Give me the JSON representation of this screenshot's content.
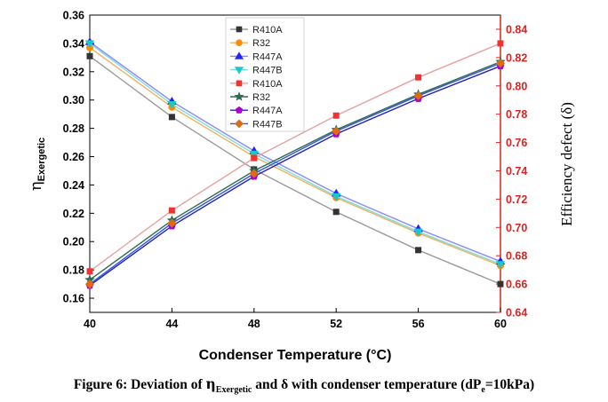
{
  "chart_data": {
    "type": "line",
    "x": [
      40,
      44,
      48,
      52,
      56,
      60
    ],
    "xlabel": "Condenser Temperature (°C)",
    "xlim": [
      40,
      60
    ],
    "xticks": [
      "40",
      "44",
      "48",
      "52",
      "56",
      "60"
    ],
    "ylabel_left_main": "η",
    "ylabel_left_sub": "Exergetic",
    "ylim_left": [
      0.15,
      0.36
    ],
    "yticks_left": [
      "0.16",
      "0.18",
      "0.20",
      "0.22",
      "0.24",
      "0.26",
      "0.28",
      "0.30",
      "0.32",
      "0.34",
      "0.36"
    ],
    "ylabel_right": "Efficiency defect (δ)",
    "ylim_right": [
      0.64,
      0.85
    ],
    "yticks_right": [
      "0.64",
      "0.66",
      "0.68",
      "0.70",
      "0.72",
      "0.74",
      "0.76",
      "0.78",
      "0.80",
      "0.82",
      "0.84"
    ],
    "grid": false,
    "legend_position": "top-center",
    "series": [
      {
        "name": "R410A",
        "axis": "left",
        "marker": "square",
        "color": "#333333",
        "line_color": "#9a9a9a",
        "values": [
          0.331,
          0.288,
          0.251,
          0.221,
          0.194,
          0.17
        ]
      },
      {
        "name": "R32",
        "axis": "left",
        "marker": "circle",
        "color": "#ff8a00",
        "line_color": "#f0b060",
        "values": [
          0.337,
          0.295,
          0.26,
          0.231,
          0.206,
          0.183
        ]
      },
      {
        "name": "R447A",
        "axis": "left",
        "marker": "triangle-up",
        "color": "#2222ff",
        "line_color": "#8888ff",
        "values": [
          0.341,
          0.299,
          0.264,
          0.234,
          0.209,
          0.186
        ]
      },
      {
        "name": "R447B",
        "axis": "left",
        "marker": "triangle-down",
        "color": "#17c9c9",
        "line_color": "#80dddd",
        "values": [
          0.34,
          0.297,
          0.262,
          0.232,
          0.207,
          0.184
        ]
      },
      {
        "name": "R410A",
        "axis": "right",
        "marker": "square",
        "color": "#ee3333",
        "line_color": "#e8a0a0",
        "values": [
          0.669,
          0.712,
          0.749,
          0.779,
          0.806,
          0.83
        ]
      },
      {
        "name": "R32",
        "axis": "right",
        "marker": "star",
        "color": "#2e6b52",
        "line_color": "#2e6b52",
        "values": [
          0.663,
          0.705,
          0.74,
          0.769,
          0.794,
          0.817
        ]
      },
      {
        "name": "R447A",
        "axis": "right",
        "marker": "pentagon",
        "color": "#aa00cc",
        "line_color": "#2222bb",
        "values": [
          0.659,
          0.701,
          0.736,
          0.766,
          0.791,
          0.814
        ]
      },
      {
        "name": "R447B",
        "axis": "right",
        "marker": "diamond",
        "color": "#e06a10",
        "line_color": "#3355dd",
        "values": [
          0.66,
          0.703,
          0.738,
          0.768,
          0.793,
          0.816
        ]
      }
    ]
  },
  "caption": {
    "prefix": "Figure 6: Deviation of ",
    "eta": "η",
    "eta_sub": "Exergetic",
    "middle": " and δ with condenser temperature (dP",
    "p_sub": "e",
    "suffix": "=10kPa)"
  },
  "colors": {
    "left_axis": "#000000",
    "right_axis": "#dd2222"
  }
}
